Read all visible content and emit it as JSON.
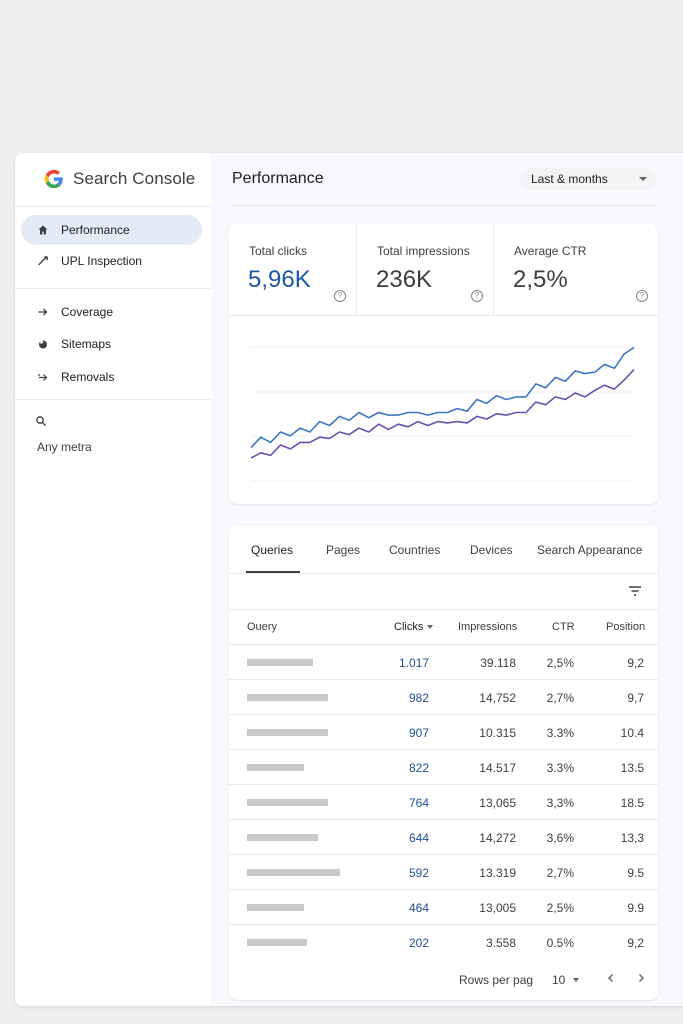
{
  "app": {
    "name": "Search Console"
  },
  "sidebar": {
    "items": [
      {
        "label": "Performance",
        "icon": "home-icon",
        "active": true
      },
      {
        "label": "UPL Inspection",
        "icon": "trend-icon"
      },
      {
        "label": "Coverage",
        "icon": "arrow-right-icon"
      },
      {
        "label": "Sitemaps",
        "icon": "sitemap-icon"
      },
      {
        "label": "Removals",
        "icon": "removals-icon"
      }
    ],
    "search_label": "Any metra"
  },
  "header": {
    "title": "Performance",
    "date_range": "Last & months"
  },
  "metrics": [
    {
      "label": "Total clicks",
      "value": "5,96K"
    },
    {
      "label": "Total impressions",
      "value": "236K"
    },
    {
      "label": "Average CTR",
      "value": "2,5%"
    }
  ],
  "colors": {
    "clicks": "#3b78c4",
    "impressions": "#6a4fb0",
    "accent": "#1f57a8"
  },
  "chart_data": {
    "type": "line",
    "title": "",
    "xlabel": "",
    "ylabel": "",
    "grid": true,
    "x": [
      1,
      2,
      3,
      4,
      5,
      6,
      7,
      8,
      9,
      10,
      11,
      12,
      13,
      14,
      15,
      16,
      17,
      18,
      19,
      20,
      21,
      22,
      23,
      24,
      25,
      26,
      27,
      28,
      29,
      30,
      31,
      32,
      33,
      34,
      35,
      36,
      37,
      38,
      39,
      40
    ],
    "ylim": [
      0,
      100
    ],
    "series": [
      {
        "name": "Clicks",
        "values": [
          18,
          26,
          22,
          30,
          27,
          33,
          30,
          38,
          35,
          42,
          39,
          45,
          41,
          45,
          43,
          43,
          45,
          45,
          43,
          45,
          45,
          48,
          46,
          55,
          52,
          58,
          55,
          57,
          57,
          67,
          64,
          72,
          69,
          77,
          75,
          76,
          82,
          79,
          90,
          95
        ]
      },
      {
        "name": "Impressions",
        "values": [
          10,
          14,
          12,
          20,
          17,
          22,
          22,
          26,
          25,
          30,
          28,
          33,
          30,
          36,
          32,
          36,
          34,
          38,
          35,
          38,
          37,
          38,
          37,
          42,
          40,
          44,
          43,
          45,
          45,
          53,
          51,
          57,
          55,
          60,
          57,
          62,
          66,
          63,
          70,
          78
        ]
      }
    ]
  },
  "table": {
    "tabs": [
      "Queries",
      "Pages",
      "Countries",
      "Devices",
      "Search Appearance"
    ],
    "active_tab": "Queries",
    "columns": [
      "Ouery",
      "Clicks",
      "Impressions",
      "CTR",
      "Position"
    ],
    "rows": [
      {
        "clicks": "1.017",
        "impressions": "39.118",
        "ctr": "2,5%",
        "position": "9,2",
        "bar": 0.44
      },
      {
        "clicks": "982",
        "impressions": "14,752",
        "ctr": "2,7%",
        "position": "9,7",
        "bar": 0.54
      },
      {
        "clicks": "907",
        "impressions": "10.315",
        "ctr": "3.3%",
        "position": "10.4",
        "bar": 0.54
      },
      {
        "clicks": "822",
        "impressions": "14.517",
        "ctr": "3.3%",
        "position": "13.5",
        "bar": 0.38
      },
      {
        "clicks": "764",
        "impressions": "13,065",
        "ctr": "3,3%",
        "position": "18.5",
        "bar": 0.54
      },
      {
        "clicks": "644",
        "impressions": "14,272",
        "ctr": "3,6%",
        "position": "13,3",
        "bar": 0.47
      },
      {
        "clicks": "592",
        "impressions": "13.319",
        "ctr": "2,7%",
        "position": "9.5",
        "bar": 0.62
      },
      {
        "clicks": "464",
        "impressions": "13,005",
        "ctr": "2,5%",
        "position": "9.9",
        "bar": 0.38
      },
      {
        "clicks": "202",
        "impressions": "3.558",
        "ctr": "0.5%",
        "position": "9,2",
        "bar": 0.4
      }
    ],
    "rows_per_page_label": "Rows per pag",
    "rows_per_page": "10"
  }
}
